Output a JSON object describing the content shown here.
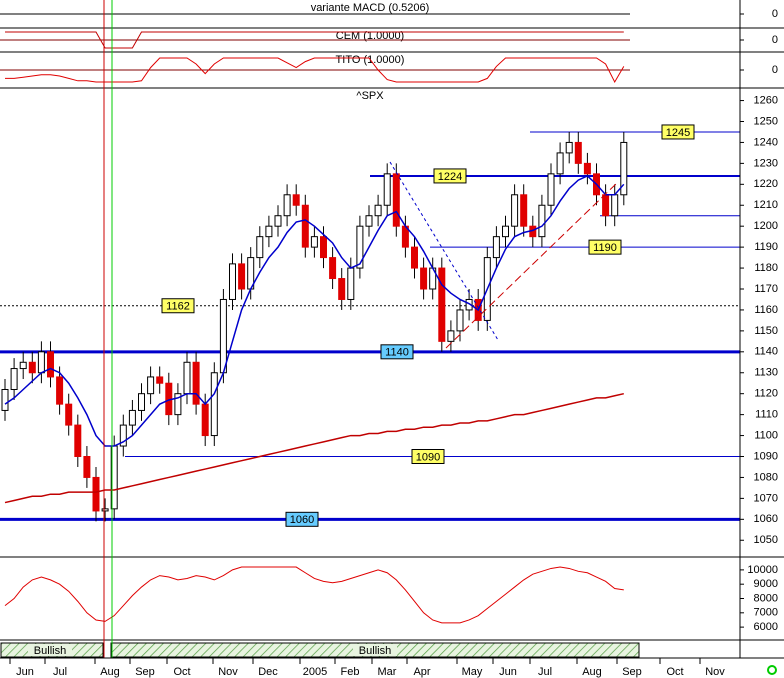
{
  "chart_data": [
    {
      "type": "blank",
      "title": "variante MACD (0.5206)",
      "ylim": [
        -1,
        1
      ],
      "yticks": [
        0
      ]
    },
    {
      "type": "line",
      "title": "CEM (1.0000)",
      "ylim": [
        -1.5,
        1.5
      ],
      "yticks": [
        0
      ],
      "series": [
        {
          "color": "#c00000",
          "values": [
            1,
            1,
            1,
            1,
            1,
            1,
            1,
            1,
            1,
            1,
            1,
            -1,
            -1,
            -1,
            -1,
            1,
            1,
            1,
            1,
            1,
            1,
            1,
            1,
            1,
            1,
            1,
            1,
            1,
            1,
            1,
            1,
            1,
            1,
            1,
            1,
            1,
            1,
            1,
            1,
            1,
            1,
            1,
            1,
            1,
            1,
            1,
            1,
            1,
            1,
            1,
            1,
            1,
            1,
            1,
            1,
            1,
            1,
            1,
            1,
            1,
            1,
            1,
            1,
            1,
            1,
            1,
            1,
            1,
            1
          ]
        }
      ]
    },
    {
      "type": "line",
      "title": "TITO (1.0000)",
      "ylim": [
        -1.5,
        1.5
      ],
      "yticks": [
        0
      ],
      "series": [
        {
          "color": "#e00000",
          "values": [
            -0.7,
            -0.7,
            -0.6,
            -0.5,
            -0.4,
            -0.4,
            -0.5,
            -0.7,
            -0.9,
            -0.9,
            -1,
            -1,
            -1,
            -1,
            -1,
            -0.9,
            0.2,
            1,
            1,
            1,
            1,
            0.5,
            -0.3,
            0.5,
            1,
            1,
            1,
            1,
            1,
            1,
            1,
            0.6,
            0.2,
            0.7,
            1,
            1,
            1,
            1,
            1,
            1,
            1,
            0,
            -0.8,
            -1,
            -1,
            -1,
            -1,
            -1,
            -1,
            -1,
            -1,
            -1,
            -1,
            -0.7,
            0.3,
            1,
            1,
            1,
            1,
            1,
            1,
            1,
            1,
            1,
            1,
            1,
            0.5,
            -1,
            0.3
          ]
        }
      ]
    },
    {
      "type": "candlestick",
      "title": "^SPX",
      "ylim": [
        1042,
        1266
      ],
      "yticks": [
        1050,
        1060,
        1070,
        1080,
        1090,
        1100,
        1110,
        1120,
        1130,
        1140,
        1150,
        1160,
        1170,
        1180,
        1190,
        1200,
        1210,
        1220,
        1230,
        1240,
        1250,
        1260
      ],
      "up_color": "#ffffff",
      "down_color": "#e00000",
      "open": [
        1112,
        1122,
        1132,
        1135,
        1130,
        1140,
        1128,
        1115,
        1105,
        1090,
        1080,
        1064,
        1065,
        1095,
        1105,
        1112,
        1120,
        1128,
        1125,
        1110,
        1120,
        1135,
        1115,
        1100,
        1130,
        1165,
        1182,
        1170,
        1185,
        1195,
        1200,
        1205,
        1215,
        1210,
        1190,
        1195,
        1185,
        1175,
        1165,
        1180,
        1200,
        1205,
        1210,
        1225,
        1200,
        1190,
        1180,
        1170,
        1180,
        1145,
        1150,
        1160,
        1165,
        1155,
        1185,
        1195,
        1200,
        1215,
        1200,
        1195,
        1210,
        1225,
        1235,
        1240,
        1230,
        1225,
        1215,
        1205,
        1215
      ],
      "high": [
        1127,
        1137,
        1140,
        1140,
        1145,
        1145,
        1133,
        1120,
        1110,
        1095,
        1085,
        1070,
        1100,
        1110,
        1117,
        1125,
        1133,
        1133,
        1130,
        1125,
        1140,
        1140,
        1120,
        1135,
        1170,
        1187,
        1187,
        1190,
        1200,
        1205,
        1210,
        1220,
        1220,
        1215,
        1200,
        1200,
        1190,
        1180,
        1185,
        1205,
        1210,
        1215,
        1230,
        1230,
        1205,
        1195,
        1185,
        1185,
        1185,
        1155,
        1165,
        1170,
        1170,
        1190,
        1200,
        1205,
        1220,
        1220,
        1205,
        1215,
        1230,
        1240,
        1245,
        1245,
        1235,
        1230,
        1220,
        1220,
        1245
      ],
      "low": [
        1107,
        1117,
        1127,
        1125,
        1125,
        1123,
        1110,
        1100,
        1085,
        1075,
        1059,
        1059,
        1060,
        1090,
        1100,
        1107,
        1115,
        1120,
        1105,
        1105,
        1115,
        1110,
        1095,
        1095,
        1125,
        1160,
        1165,
        1165,
        1180,
        1190,
        1195,
        1200,
        1205,
        1185,
        1185,
        1180,
        1170,
        1160,
        1160,
        1175,
        1195,
        1200,
        1205,
        1195,
        1185,
        1175,
        1165,
        1165,
        1140,
        1140,
        1145,
        1155,
        1150,
        1150,
        1180,
        1190,
        1195,
        1195,
        1190,
        1190,
        1205,
        1220,
        1230,
        1225,
        1220,
        1210,
        1200,
        1200,
        1210
      ],
      "close": [
        1122,
        1132,
        1135,
        1130,
        1140,
        1128,
        1115,
        1105,
        1090,
        1080,
        1064,
        1065,
        1095,
        1105,
        1112,
        1120,
        1128,
        1125,
        1110,
        1120,
        1135,
        1115,
        1100,
        1130,
        1165,
        1182,
        1170,
        1185,
        1195,
        1200,
        1205,
        1215,
        1210,
        1190,
        1195,
        1185,
        1175,
        1165,
        1180,
        1200,
        1205,
        1210,
        1225,
        1200,
        1190,
        1180,
        1170,
        1180,
        1145,
        1150,
        1160,
        1165,
        1155,
        1185,
        1195,
        1200,
        1215,
        1200,
        1195,
        1210,
        1225,
        1235,
        1240,
        1230,
        1225,
        1215,
        1205,
        1215,
        1240
      ],
      "series": [
        {
          "color": "#0000cc",
          "values": [
            1115,
            1118,
            1122,
            1126,
            1130,
            1132,
            1130,
            1125,
            1118,
            1110,
            1100,
            1095,
            1095,
            1097,
            1100,
            1105,
            1110,
            1115,
            1117,
            1118,
            1120,
            1120,
            1115,
            1120,
            1130,
            1145,
            1160,
            1170,
            1178,
            1185,
            1190,
            1197,
            1202,
            1203,
            1200,
            1196,
            1192,
            1185,
            1180,
            1182,
            1190,
            1198,
            1205,
            1207,
            1200,
            1195,
            1188,
            1180,
            1172,
            1168,
            1165,
            1163,
            1160,
            1170,
            1180,
            1189,
            1195,
            1197,
            1198,
            1200,
            1205,
            1212,
            1218,
            1222,
            1224,
            1220,
            1215,
            1215,
            1220
          ]
        },
        {
          "color": "#c00000",
          "values": [
            1068,
            1069,
            1070,
            1071,
            1071,
            1072,
            1072,
            1073,
            1073,
            1073,
            1073,
            1074,
            1074,
            1075,
            1076,
            1077,
            1078,
            1079,
            1080,
            1081,
            1082,
            1083,
            1084,
            1085,
            1086,
            1087,
            1088,
            1089,
            1090,
            1091,
            1092,
            1093,
            1094,
            1095,
            1096,
            1097,
            1098,
            1099,
            1100,
            1100,
            1101,
            1101,
            1102,
            1102,
            1103,
            1103,
            1104,
            1104,
            1105,
            1105,
            1106,
            1106,
            1107,
            1107,
            1108,
            1109,
            1110,
            1110,
            1111,
            1112,
            1113,
            1114,
            1115,
            1116,
            1117,
            1118,
            1118,
            1119,
            1120
          ]
        }
      ],
      "levels": [
        {
          "value": 1245,
          "color": "#0000cc",
          "width": 1,
          "badge": "#ffff66"
        },
        {
          "value": 1224,
          "color": "#0000cc",
          "width": 2,
          "badge": "#ffff66"
        },
        {
          "value": 1205,
          "color": "#0000cc",
          "width": 1
        },
        {
          "value": 1190,
          "color": "#0000cc",
          "width": 1,
          "badge": "#ffff66"
        },
        {
          "value": 1162,
          "color": "#000000",
          "width": 1,
          "dashed": true,
          "badge": "#ffff66"
        },
        {
          "value": 1140,
          "color": "#0000cc",
          "width": 3,
          "badge": "#66ccff"
        },
        {
          "value": 1090,
          "color": "#0000cc",
          "width": 1,
          "badge": "#ffff66"
        },
        {
          "value": 1060,
          "color": "#0000cc",
          "width": 3,
          "badge": "#66ccff"
        }
      ]
    },
    {
      "type": "line",
      "ylim": [
        5100,
        10900
      ],
      "yticks": [
        10000,
        9000,
        8000,
        7000,
        6000
      ],
      "series": [
        {
          "color": "#e00000",
          "values": [
            7500,
            8000,
            8800,
            9300,
            9500,
            9300,
            9000,
            8500,
            7800,
            7000,
            6500,
            6400,
            6800,
            7500,
            8200,
            8800,
            9300,
            9600,
            9500,
            9300,
            9400,
            9600,
            9500,
            9300,
            9600,
            10000,
            10200,
            10200,
            10200,
            10200,
            10200,
            10200,
            10200,
            9800,
            9400,
            9200,
            9100,
            9200,
            9400,
            9600,
            9800,
            10000,
            9800,
            9300,
            8600,
            7800,
            7000,
            6500,
            6300,
            6300,
            6300,
            6500,
            6800,
            7300,
            7800,
            8300,
            8800,
            9300,
            9700,
            9900,
            10100,
            10200,
            10100,
            9900,
            9800,
            9500,
            9200,
            8700,
            8600
          ]
        }
      ]
    }
  ],
  "x_axis": {
    "labels": [
      "Jun",
      "Jul",
      "Aug",
      "Sep",
      "Oct",
      "Nov",
      "Dec",
      "2005",
      "Feb",
      "Mar",
      "Apr",
      "May",
      "Jun",
      "Jul",
      "Aug",
      "Sep",
      "Oct",
      "Nov"
    ]
  },
  "bands": [
    "Bullish",
    "Bullish"
  ]
}
